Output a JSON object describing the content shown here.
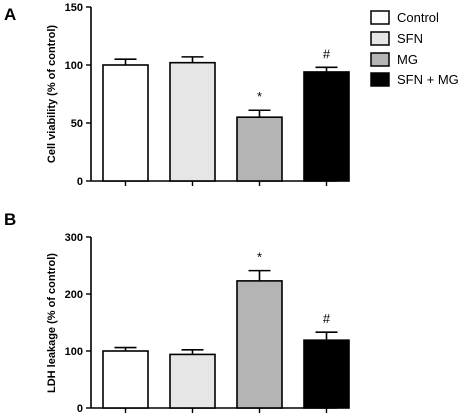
{
  "legend": {
    "entries": [
      {
        "label": "Control",
        "color": "#ffffff"
      },
      {
        "label": "SFN",
        "color": "#e6e6e6"
      },
      {
        "label": "MG",
        "color": "#b4b4b4"
      },
      {
        "label": "SFN + MG",
        "color": "#000000"
      }
    ]
  },
  "chart_data": [
    {
      "type": "bar",
      "panel_label": "A",
      "ylabel": "Cell viability (% of control)",
      "ylim": [
        0,
        150
      ],
      "yticks": [
        0,
        50,
        100,
        150
      ],
      "categories": [
        "Control",
        "SFN",
        "MG",
        "SFN + MG"
      ],
      "values": [
        100,
        102,
        55,
        94
      ],
      "errors": [
        5,
        5,
        6,
        4
      ],
      "annotations": [
        "",
        "",
        "*",
        "#"
      ],
      "colors": [
        "#ffffff",
        "#e6e6e6",
        "#b4b4b4",
        "#000000"
      ],
      "grid": false
    },
    {
      "type": "bar",
      "panel_label": "B",
      "ylabel": "LDH leakage (% of control)",
      "ylim": [
        0,
        300
      ],
      "yticks": [
        0,
        100,
        200,
        300
      ],
      "categories": [
        "Control",
        "SFN",
        "MG",
        "SFN + MG"
      ],
      "values": [
        100,
        94,
        223,
        119
      ],
      "errors": [
        6,
        8,
        18,
        14
      ],
      "annotations": [
        "",
        "",
        "*",
        "#"
      ],
      "colors": [
        "#ffffff",
        "#e6e6e6",
        "#b4b4b4",
        "#000000"
      ],
      "grid": false
    }
  ]
}
